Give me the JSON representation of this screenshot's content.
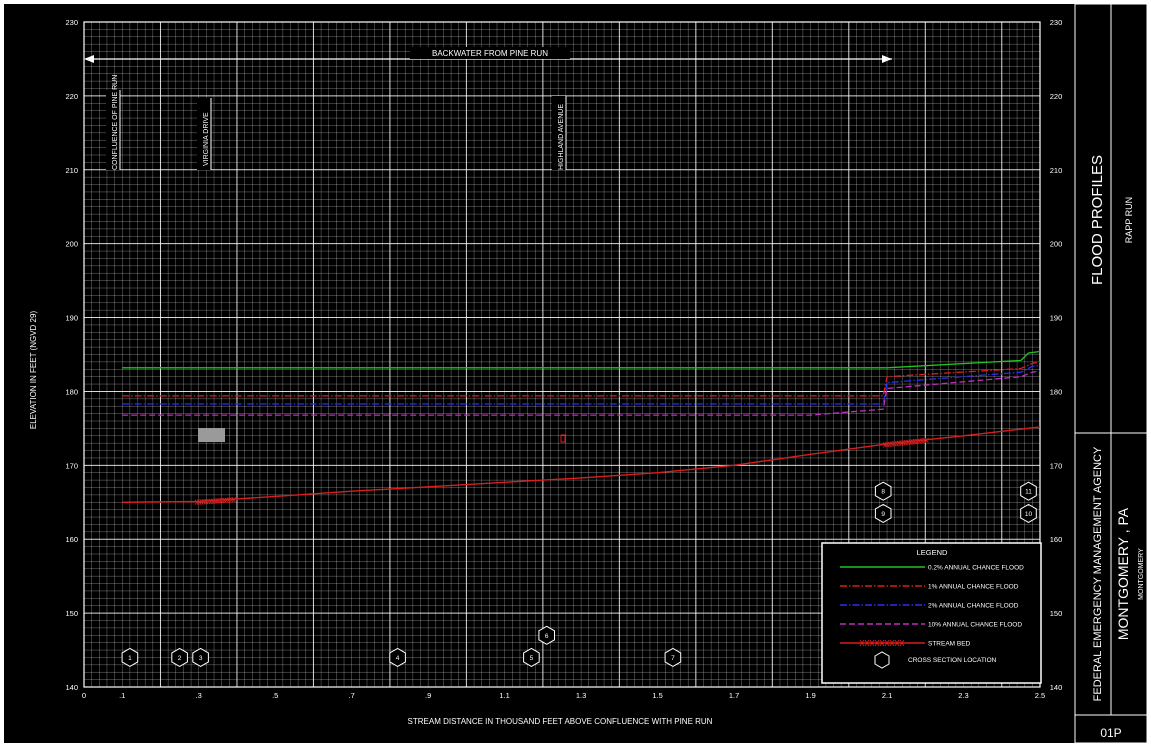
{
  "chart_data": {
    "type": "line",
    "title": "",
    "xlabel": "STREAM DISTANCE IN THOUSAND FEET ABOVE CONFLUENCE WITH PINE RUN",
    "ylabel": "ELEVATION IN FEET (NGVD 29)",
    "xlim": [
      0,
      2.5
    ],
    "ylim": [
      140,
      230
    ],
    "x_ticks": [
      "0",
      ".1",
      ".3",
      ".5",
      ".7",
      ".9",
      "1.1",
      "1.3",
      "1.5",
      "1.7",
      "1.9",
      "2.1",
      "2.3",
      "2.5"
    ],
    "y_ticks": [
      "140",
      "150",
      "160",
      "170",
      "180",
      "190",
      "200",
      "210",
      "220",
      "230"
    ],
    "grid": true,
    "legend_position": "bottom-right",
    "legend_title": "LEGEND",
    "series": [
      {
        "name": "0.2% ANNUAL CHANCE FLOOD",
        "color": "#22c322",
        "dash": "solid",
        "x": [
          0.1,
          1.8,
          2.1,
          2.45,
          2.47,
          2.5
        ],
        "y": [
          183.2,
          183.2,
          183.2,
          184.2,
          185.2,
          185.4
        ]
      },
      {
        "name": "1% ANNUAL CHANCE FLOOD",
        "color": "#d81e1e",
        "dash": "dashdot",
        "x": [
          0.1,
          2.09,
          2.1,
          2.45,
          2.48,
          2.5
        ],
        "y": [
          179.4,
          179.4,
          182.0,
          183.1,
          183.8,
          184.0
        ]
      },
      {
        "name": "2% ANNUAL CHANCE FLOOD",
        "color": "#2d2df0",
        "dash": "dashdot",
        "x": [
          0.1,
          2.09,
          2.1,
          2.45,
          2.48,
          2.5
        ],
        "y": [
          178.3,
          178.3,
          181.2,
          182.6,
          183.4,
          183.5
        ]
      },
      {
        "name": "10% ANNUAL CHANCE FLOOD",
        "color": "#c02ec0",
        "dash": "dash",
        "x": [
          0.1,
          1.9,
          2.09,
          2.1,
          2.45,
          2.48,
          2.5
        ],
        "y": [
          176.8,
          176.8,
          177.6,
          180.4,
          182.0,
          182.6,
          182.8
        ]
      },
      {
        "name": "STREAM BED",
        "color": "#d81e1e",
        "dash": "solid",
        "x": [
          0.1,
          0.3,
          0.5,
          0.7,
          0.9,
          1.1,
          1.3,
          1.5,
          1.7,
          1.9,
          2.1,
          2.3,
          2.5
        ],
        "y": [
          165.0,
          165.1,
          165.8,
          166.5,
          167.1,
          167.7,
          168.3,
          169.0,
          170.0,
          171.5,
          172.9,
          174.0,
          175.2
        ]
      }
    ],
    "cross_sections": [
      {
        "label": "1",
        "x": 0.12,
        "y": 144.0
      },
      {
        "label": "2",
        "x": 0.25,
        "y": 144.0
      },
      {
        "label": "3",
        "x": 0.305,
        "y": 144.0
      },
      {
        "label": "4",
        "x": 0.82,
        "y": 144.0
      },
      {
        "label": "5",
        "x": 1.17,
        "y": 144.0
      },
      {
        "label": "6",
        "x": 1.21,
        "y": 147.0
      },
      {
        "label": "7",
        "x": 1.54,
        "y": 144.0
      },
      {
        "label": "8",
        "x": 2.09,
        "y": 166.5
      },
      {
        "label": "9",
        "x": 2.09,
        "y": 163.5
      },
      {
        "label": "10",
        "x": 2.47,
        "y": 163.5
      },
      {
        "label": "11",
        "x": 2.47,
        "y": 166.5
      }
    ],
    "annotations": [
      {
        "text": "BACKWATER FROM PINE RUN"
      },
      {
        "text": "CONFLUENCE OF PINE RUN"
      },
      {
        "text": "VIRGINIA DRIVE"
      },
      {
        "text": "HIGHLAND AVENUE"
      }
    ]
  },
  "title_block": {
    "sheet_title": "FLOOD PROFILES",
    "stream_name": "RAPP RUN",
    "agency": "FEDERAL EMERGENCY MANAGEMENT AGENCY",
    "community": "MONTGOMERY , PA",
    "county": "MONTGOMERY",
    "panel_number": "01P"
  }
}
